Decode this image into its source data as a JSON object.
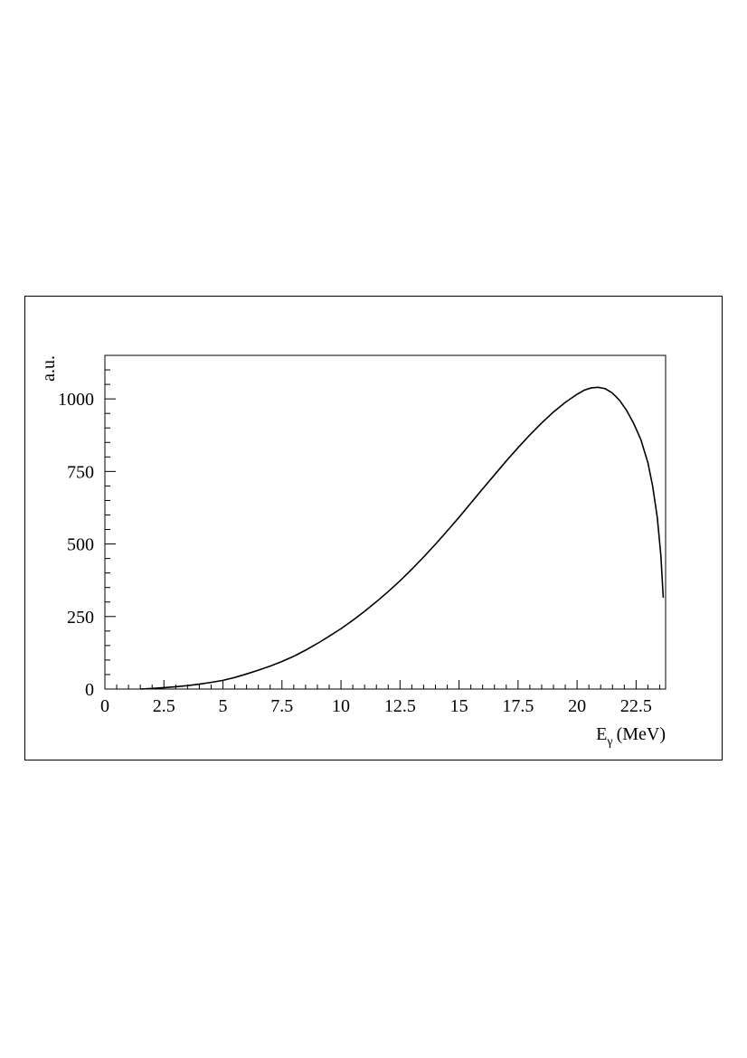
{
  "chart_data": {
    "type": "line",
    "title": "",
    "xlabel": {
      "main": "E",
      "subscript": "γ",
      "unit": "(MeV)"
    },
    "ylabel": "a.u.",
    "xlim": [
      0,
      23.75
    ],
    "ylim": [
      0,
      1150
    ],
    "xticks": [
      0,
      2.5,
      5,
      7.5,
      10,
      12.5,
      15,
      17.5,
      20,
      22.5
    ],
    "xtick_labels": [
      "0",
      "2.5",
      "5",
      "7.5",
      "10",
      "12.5",
      "15",
      "17.5",
      "20",
      "22.5"
    ],
    "yticks": [
      0,
      250,
      500,
      750,
      1000
    ],
    "ytick_labels": [
      "0",
      "250",
      "500",
      "750",
      "1000"
    ],
    "grid": false,
    "legend": "none",
    "line_color": "#000000",
    "series": [
      {
        "x": [
          1.5,
          2.0,
          2.5,
          3.0,
          3.5,
          4.0,
          4.5,
          5.0,
          5.5,
          6.0,
          6.5,
          7.0,
          7.5,
          8.0,
          8.5,
          9.0,
          9.5,
          10.0,
          10.5,
          11.0,
          11.5,
          12.0,
          12.5,
          13.0,
          13.5,
          14.0,
          14.5,
          15.0,
          15.5,
          16.0,
          16.5,
          17.0,
          17.5,
          18.0,
          18.5,
          19.0,
          19.5,
          20.0,
          20.3,
          20.6,
          20.9,
          21.2,
          21.5,
          21.8,
          22.1,
          22.4,
          22.7,
          23.0,
          23.2,
          23.4,
          23.55,
          23.65
        ],
        "y": [
          0,
          2,
          5,
          8,
          12,
          17,
          23,
          30,
          40,
          52,
          65,
          79,
          95,
          113,
          134,
          157,
          182,
          208,
          237,
          268,
          301,
          336,
          373,
          413,
          455,
          499,
          545,
          592,
          641,
          690,
          738,
          786,
          832,
          876,
          917,
          955,
          988,
          1016,
          1030,
          1038,
          1040,
          1035,
          1020,
          995,
          960,
          915,
          860,
          780,
          700,
          590,
          460,
          315
        ]
      }
    ]
  }
}
